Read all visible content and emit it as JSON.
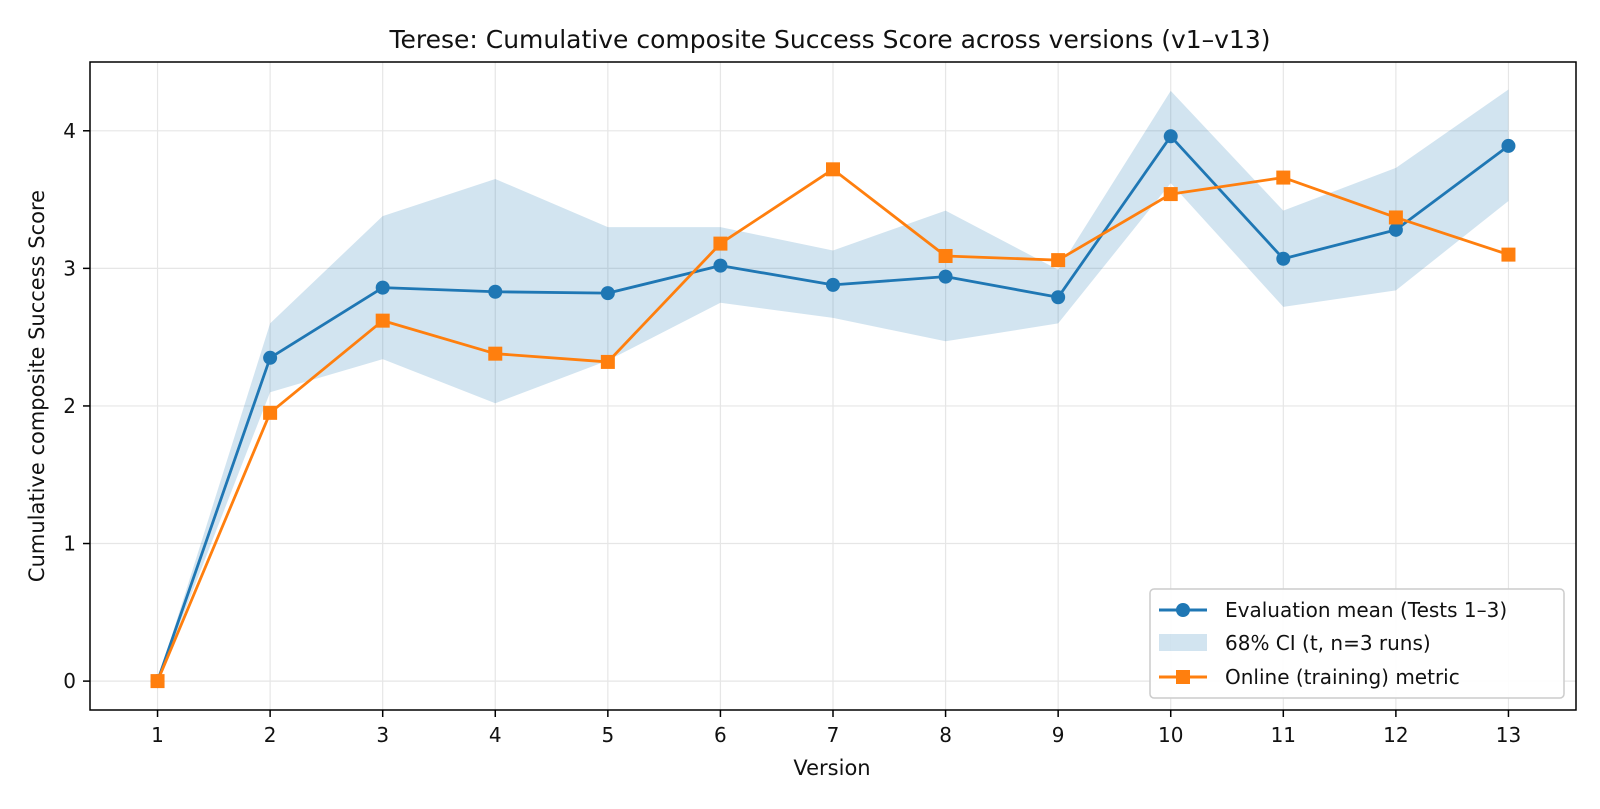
{
  "chart_data": {
    "type": "line",
    "title": "Terese: Cumulative composite Success Score across versions (v1–v13)",
    "xlabel": "Version",
    "ylabel": "Cumulative composite Success Score",
    "x": [
      1,
      2,
      3,
      4,
      5,
      6,
      7,
      8,
      9,
      10,
      11,
      12,
      13
    ],
    "x_tick_labels": [
      "1",
      "2",
      "3",
      "4",
      "5",
      "6",
      "7",
      "8",
      "9",
      "10",
      "11",
      "12",
      "13"
    ],
    "y_ticks": [
      0,
      1,
      2,
      3,
      4
    ],
    "y_tick_labels": [
      "0",
      "1",
      "2",
      "3",
      "4"
    ],
    "xlim": [
      0.4,
      13.6
    ],
    "ylim": [
      -0.21,
      4.5
    ],
    "grid": true,
    "legend_position": "bottom-right",
    "series": [
      {
        "name": "Evaluation mean (Tests 1–3)",
        "kind": "line",
        "marker": "circle",
        "color": "#1f77b4",
        "values": [
          0.0,
          2.35,
          2.86,
          2.83,
          2.82,
          3.02,
          2.88,
          2.94,
          2.79,
          3.96,
          3.07,
          3.28,
          3.89
        ]
      },
      {
        "name": "68% CI (t, n=3 runs)",
        "kind": "band",
        "color": "#1f77b4",
        "lower": [
          0.0,
          2.1,
          2.34,
          2.02,
          2.33,
          2.75,
          2.64,
          2.47,
          2.6,
          3.62,
          2.72,
          2.84,
          3.49
        ],
        "upper": [
          0.0,
          2.6,
          3.38,
          3.65,
          3.3,
          3.3,
          3.13,
          3.42,
          2.99,
          4.29,
          3.42,
          3.73,
          4.3
        ]
      },
      {
        "name": "Online (training) metric",
        "kind": "line",
        "marker": "square",
        "color": "#ff7f0e",
        "values": [
          0.0,
          1.95,
          2.62,
          2.38,
          2.32,
          3.18,
          3.72,
          3.09,
          3.06,
          3.54,
          3.66,
          3.37,
          3.1
        ]
      }
    ]
  }
}
